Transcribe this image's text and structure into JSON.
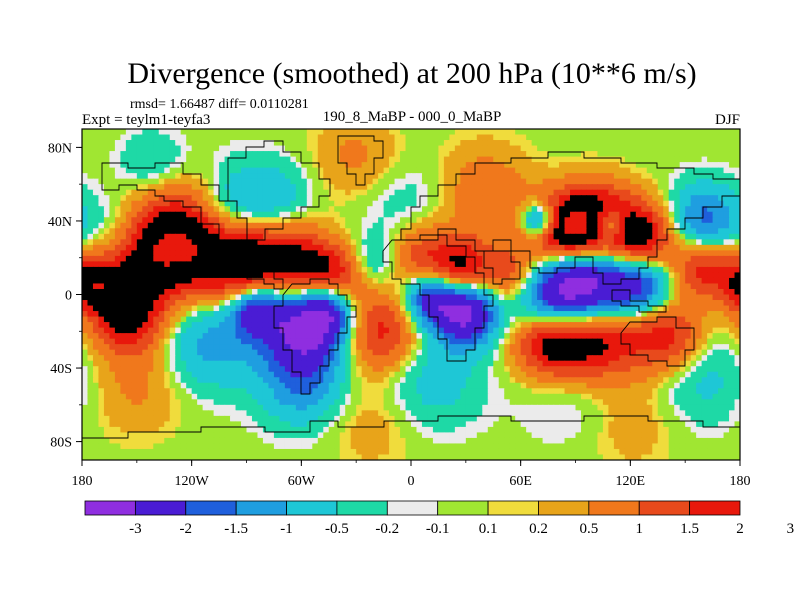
{
  "chart_data": {
    "type": "heatmap",
    "title": "Divergence (smoothed) at 200 hPa (10**6 m/s)",
    "stats": "rmsd= 1.66487 diff= 0.0110281",
    "experiment": "Expt = teylm1-teyfa3",
    "comparison": "190_8_MaBP - 000_0_MaBP",
    "season": "DJF",
    "xlim": [
      -180,
      180
    ],
    "ylim": [
      -90,
      90
    ],
    "x_ticks": [
      {
        "value": -180,
        "label": "180"
      },
      {
        "value": -120,
        "label": "120W"
      },
      {
        "value": -60,
        "label": "60W"
      },
      {
        "value": 0,
        "label": "0"
      },
      {
        "value": 60,
        "label": "60E"
      },
      {
        "value": 120,
        "label": "120E"
      },
      {
        "value": 180,
        "label": "180"
      }
    ],
    "y_ticks": [
      {
        "value": 80,
        "label": "80N"
      },
      {
        "value": 40,
        "label": "40N"
      },
      {
        "value": 0,
        "label": "0"
      },
      {
        "value": -40,
        "label": "40S"
      },
      {
        "value": -80,
        "label": "80S"
      }
    ],
    "colorbar": {
      "colors": [
        "#8f2ee0",
        "#4a1cd4",
        "#1f5fdc",
        "#1f9ee0",
        "#1ec7d6",
        "#1ed9a6",
        "#ebebeb",
        "#a0e632",
        "#f0dc3c",
        "#e8a41a",
        "#f0781c",
        "#e84a1c",
        "#e8180c"
      ],
      "labels": [
        "-3",
        "-2",
        "-1.5",
        "-1",
        "-0.5",
        "-0.2",
        "-0.1",
        "0.1",
        "0.2",
        "0.5",
        "1",
        "1.5",
        "2",
        "3"
      ]
    },
    "blobs": [
      {
        "lon": -160,
        "lat": 35,
        "v": -1.0,
        "r": 14
      },
      {
        "lon": -125,
        "lat": 30,
        "v": 2.8,
        "r": 22
      },
      {
        "lon": -150,
        "lat": 20,
        "v": 1.3,
        "r": 18
      },
      {
        "lon": -90,
        "lat": 18,
        "v": 2.4,
        "r": 16
      },
      {
        "lon": -100,
        "lat": 42,
        "v": -1.0,
        "r": 14
      },
      {
        "lon": -75,
        "lat": 52,
        "v": -0.8,
        "r": 14
      },
      {
        "lon": -60,
        "lat": 15,
        "v": 2.2,
        "r": 14
      },
      {
        "lon": -85,
        "lat": -8,
        "v": -2.2,
        "r": 10
      },
      {
        "lon": -58,
        "lat": -18,
        "v": -3.3,
        "r": 17
      },
      {
        "lon": -45,
        "lat": -8,
        "v": -2.0,
        "r": 10
      },
      {
        "lon": -40,
        "lat": 8,
        "v": 1.8,
        "r": 12
      },
      {
        "lon": -20,
        "lat": 15,
        "v": -1.0,
        "r": 12
      },
      {
        "lon": 5,
        "lat": 20,
        "v": 1.5,
        "r": 14
      },
      {
        "lon": 10,
        "lat": -2,
        "v": -2.4,
        "r": 10
      },
      {
        "lon": 30,
        "lat": -10,
        "v": -3.2,
        "r": 12
      },
      {
        "lon": -18,
        "lat": -20,
        "v": 1.9,
        "r": 16
      },
      {
        "lon": 28,
        "lat": 15,
        "v": 2.0,
        "r": 11
      },
      {
        "lon": 55,
        "lat": 10,
        "v": 1.5,
        "r": 11
      },
      {
        "lon": 80,
        "lat": 0,
        "v": -3.1,
        "r": 16
      },
      {
        "lon": 100,
        "lat": 3,
        "v": -3.0,
        "r": 16
      },
      {
        "lon": 125,
        "lat": 5,
        "v": -2.4,
        "r": 13
      },
      {
        "lon": 80,
        "lat": 32,
        "v": 2.4,
        "r": 14
      },
      {
        "lon": 100,
        "lat": 40,
        "v": 2.8,
        "r": 14
      },
      {
        "lon": 125,
        "lat": 30,
        "v": 2.6,
        "r": 14
      },
      {
        "lon": 70,
        "lat": 40,
        "v": -2.6,
        "r": 7
      },
      {
        "lon": 108,
        "lat": 38,
        "v": -2.4,
        "r": 7
      },
      {
        "lon": 160,
        "lat": 40,
        "v": -1.8,
        "r": 14
      },
      {
        "lon": 100,
        "lat": -20,
        "v": 3.0,
        "r": 18
      },
      {
        "lon": 75,
        "lat": -25,
        "v": 2.2,
        "r": 14
      },
      {
        "lon": 140,
        "lat": -22,
        "v": 1.8,
        "r": 14
      },
      {
        "lon": -155,
        "lat": -12,
        "v": 2.2,
        "r": 14
      },
      {
        "lon": -110,
        "lat": -25,
        "v": -1.3,
        "r": 18
      },
      {
        "lon": 160,
        "lat": 15,
        "v": 1.8,
        "r": 12
      },
      {
        "lon": -175,
        "lat": 5,
        "v": 2.0,
        "r": 10
      },
      {
        "lon": -100,
        "lat": 55,
        "v": -0.6,
        "r": 16
      },
      {
        "lon": 40,
        "lat": 55,
        "v": 0.9,
        "r": 18
      },
      {
        "lon": -30,
        "lat": 75,
        "v": 0.6,
        "r": 16
      },
      {
        "lon": -140,
        "lat": 68,
        "v": -0.8,
        "r": 14
      },
      {
        "lon": 10,
        "lat": -45,
        "v": -0.8,
        "r": 20
      },
      {
        "lon": -60,
        "lat": -50,
        "v": -1.2,
        "r": 16
      },
      {
        "lon": 90,
        "lat": -50,
        "v": -0.5,
        "r": 20
      },
      {
        "lon": 160,
        "lat": -45,
        "v": -0.7,
        "r": 18
      },
      {
        "lon": -150,
        "lat": -50,
        "v": 0.6,
        "r": 18
      },
      {
        "lon": -20,
        "lat": -70,
        "v": 0.4,
        "r": 18
      },
      {
        "lon": 120,
        "lat": -70,
        "v": 0.4,
        "r": 18
      },
      {
        "lon": 0,
        "lat": 45,
        "v": -0.5,
        "r": 18
      }
    ]
  }
}
